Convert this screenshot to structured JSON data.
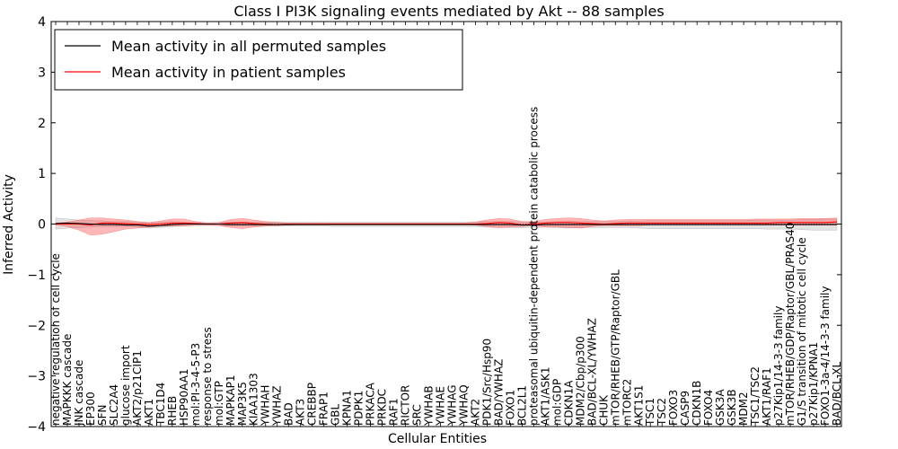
{
  "chart_data": {
    "type": "line",
    "title": "Class I PI3K signaling events mediated by Akt -- 88 samples",
    "xlabel": "Cellular Entities",
    "ylabel": "Inferred Activity",
    "ylim": [
      -4,
      4
    ],
    "yticks": [
      -4,
      -3,
      -2,
      -1,
      0,
      1,
      2,
      3,
      4
    ],
    "ytick_labels": [
      "−4",
      "−3",
      "−2",
      "−1",
      "0",
      "1",
      "2",
      "3",
      "4"
    ],
    "legend": {
      "position": "top-left",
      "entries": [
        {
          "label": "Mean activity in all permuted samples",
          "color": "#000000"
        },
        {
          "label": "Mean activity in patient samples",
          "color": "#ff0000"
        }
      ]
    },
    "categories": [
      "negative regulation of cell cycle",
      "MAPKKK cascade",
      "JNK cascade",
      "EP300",
      "SFN",
      "SLC2A4",
      "glucose import",
      "AKT2/p21CIP1",
      "AKT1",
      "TBC1D4",
      "RHEB",
      "HSP90AA1",
      "mol:PI-3-4-5-P3",
      "response to stress",
      "mol:GTP",
      "MAPKAP1",
      "MAP3K5",
      "KIAA1303",
      "YWHAH",
      "YWHAZ",
      "BAD",
      "AKT3",
      "CREBBP",
      "FRAP1",
      "GBL",
      "KPNA1",
      "PDPK1",
      "PRKACA",
      "PRKDC",
      "RAF1",
      "RICTOR",
      "SRC",
      "YWHAB",
      "YWHAE",
      "YWHAG",
      "YWHAQ",
      "AKT2",
      "PDK1/Src/Hsp90",
      "BAD/YWHAZ",
      "FOXO1",
      "BCL2L1",
      "proteasomal ubiquitin-dependent protein catabolic process",
      "AKT1/ASK1",
      "mol:GDP",
      "CDKN1A",
      "MDM2/Cbp/p300",
      "BAD/BCL-XL/YWHAZ",
      "CHUK",
      "mTOR/RHEB/GTP/Raptor/GBL",
      "mTORC2",
      "AKT1S1",
      "TSC1",
      "TSC2",
      "FOXO3",
      "CASP9",
      "CDKN1B",
      "FOXO4",
      "GSK3A",
      "GSK3B",
      "MDM2",
      "TSC1/TSC2",
      "AKT1/RAF1",
      "p27Kip1/14-3-3 family",
      "mTOR/RHEB/GDP/Raptor/GBL/PRAS40",
      "G1/S transition of mitotic cell cycle",
      "p27Kip1/KPNA1",
      "FOXO1-3a-4/14-3-3 family",
      "BAD/BCL-XL"
    ],
    "series": [
      {
        "name": "Mean activity in all permuted samples",
        "color": "#000000",
        "values": [
          0.01,
          0.02,
          0.01,
          0.0,
          -0.01,
          -0.01,
          -0.02,
          -0.02,
          -0.04,
          -0.03,
          -0.01,
          0.0,
          0.0,
          0.0,
          0.0,
          -0.01,
          -0.01,
          -0.01,
          -0.01,
          -0.01,
          -0.01,
          -0.01,
          -0.01,
          -0.01,
          -0.01,
          -0.01,
          -0.01,
          -0.01,
          -0.01,
          -0.01,
          -0.01,
          -0.01,
          -0.01,
          -0.01,
          -0.01,
          -0.01,
          -0.01,
          -0.01,
          -0.01,
          -0.01,
          -0.02,
          -0.02,
          -0.01,
          -0.01,
          -0.01,
          -0.01,
          -0.01,
          -0.01,
          -0.01,
          -0.01,
          -0.01,
          -0.01,
          -0.01,
          -0.01,
          -0.01,
          -0.01,
          -0.01,
          -0.01,
          -0.01,
          -0.01,
          -0.01,
          -0.01,
          -0.01,
          -0.01,
          -0.01,
          -0.01,
          -0.01,
          -0.01
        ],
        "band_low": [
          -0.1,
          -0.08,
          -0.07,
          -0.06,
          -0.05,
          -0.05,
          -0.05,
          -0.06,
          -0.08,
          -0.07,
          -0.05,
          -0.04,
          -0.03,
          -0.03,
          -0.03,
          -0.04,
          -0.04,
          -0.04,
          -0.04,
          -0.04,
          -0.04,
          -0.04,
          -0.04,
          -0.04,
          -0.05,
          -0.05,
          -0.05,
          -0.05,
          -0.05,
          -0.05,
          -0.05,
          -0.05,
          -0.05,
          -0.05,
          -0.05,
          -0.05,
          -0.05,
          -0.06,
          -0.07,
          -0.07,
          -0.07,
          -0.07,
          -0.06,
          -0.07,
          -0.08,
          -0.07,
          -0.07,
          -0.07,
          -0.07,
          -0.07,
          -0.08,
          -0.09,
          -0.09,
          -0.09,
          -0.09,
          -0.09,
          -0.09,
          -0.09,
          -0.09,
          -0.09,
          -0.09,
          -0.1,
          -0.1,
          -0.1,
          -0.11,
          -0.12,
          -0.12,
          -0.12
        ],
        "band_high": [
          0.12,
          0.1,
          0.08,
          0.07,
          0.06,
          0.05,
          0.05,
          0.04,
          0.03,
          0.04,
          0.05,
          0.04,
          0.03,
          0.03,
          0.03,
          0.04,
          0.04,
          0.04,
          0.04,
          0.04,
          0.04,
          0.04,
          0.04,
          0.04,
          0.04,
          0.04,
          0.04,
          0.04,
          0.04,
          0.04,
          0.04,
          0.04,
          0.04,
          0.04,
          0.04,
          0.04,
          0.04,
          0.05,
          0.05,
          0.05,
          0.04,
          0.04,
          0.04,
          0.05,
          0.06,
          0.05,
          0.05,
          0.05,
          0.05,
          0.06,
          0.06,
          0.07,
          0.07,
          0.07,
          0.07,
          0.07,
          0.07,
          0.07,
          0.07,
          0.07,
          0.08,
          0.08,
          0.08,
          0.08,
          0.09,
          0.09,
          0.1,
          0.1
        ]
      },
      {
        "name": "Mean activity in patient samples",
        "color": "#ff0000",
        "values": [
          0.0,
          0.0,
          0.0,
          -0.02,
          0.02,
          0.02,
          0.01,
          0.0,
          -0.01,
          0.0,
          0.02,
          0.02,
          0.01,
          0.0,
          0.0,
          0.02,
          0.03,
          0.01,
          0.0,
          -0.01,
          0.0,
          0.0,
          0.0,
          0.0,
          0.0,
          0.0,
          0.0,
          0.0,
          0.0,
          0.0,
          0.0,
          0.0,
          0.0,
          0.0,
          0.0,
          0.0,
          0.0,
          0.01,
          0.03,
          0.02,
          -0.02,
          0.0,
          0.02,
          0.03,
          0.03,
          0.02,
          0.01,
          0.0,
          0.01,
          0.02,
          0.02,
          0.02,
          0.02,
          0.02,
          0.02,
          0.02,
          0.02,
          0.02,
          0.02,
          0.02,
          0.02,
          0.02,
          0.03,
          0.03,
          0.03,
          0.03,
          0.03,
          0.04
        ],
        "band_low": [
          -0.02,
          -0.05,
          -0.12,
          -0.22,
          -0.2,
          -0.15,
          -0.1,
          -0.08,
          -0.06,
          -0.04,
          -0.04,
          -0.04,
          -0.02,
          -0.02,
          -0.03,
          -0.07,
          -0.09,
          -0.06,
          -0.04,
          -0.03,
          -0.02,
          -0.01,
          -0.01,
          -0.01,
          -0.01,
          -0.01,
          -0.01,
          -0.01,
          -0.01,
          -0.01,
          -0.01,
          -0.01,
          -0.01,
          -0.01,
          -0.01,
          -0.01,
          -0.02,
          -0.05,
          -0.07,
          -0.06,
          -0.05,
          -0.03,
          -0.06,
          -0.06,
          -0.07,
          -0.08,
          -0.05,
          -0.03,
          -0.03,
          -0.03,
          -0.03,
          -0.02,
          -0.02,
          -0.02,
          -0.02,
          -0.02,
          -0.02,
          -0.02,
          -0.02,
          -0.02,
          -0.02,
          -0.02,
          -0.02,
          -0.02,
          -0.02,
          -0.02,
          -0.02,
          -0.02
        ],
        "band_high": [
          0.02,
          0.04,
          0.08,
          0.12,
          0.12,
          0.1,
          0.08,
          0.05,
          0.03,
          0.06,
          0.1,
          0.1,
          0.05,
          0.02,
          0.03,
          0.09,
          0.11,
          0.08,
          0.05,
          0.03,
          0.02,
          0.02,
          0.02,
          0.02,
          0.02,
          0.02,
          0.02,
          0.02,
          0.02,
          0.02,
          0.02,
          0.02,
          0.02,
          0.02,
          0.02,
          0.02,
          0.04,
          0.08,
          0.11,
          0.1,
          0.05,
          0.05,
          0.09,
          0.11,
          0.12,
          0.11,
          0.08,
          0.06,
          0.08,
          0.09,
          0.09,
          0.09,
          0.09,
          0.09,
          0.09,
          0.09,
          0.09,
          0.09,
          0.09,
          0.09,
          0.1,
          0.1,
          0.1,
          0.1,
          0.11,
          0.11,
          0.11,
          0.12
        ]
      }
    ]
  }
}
